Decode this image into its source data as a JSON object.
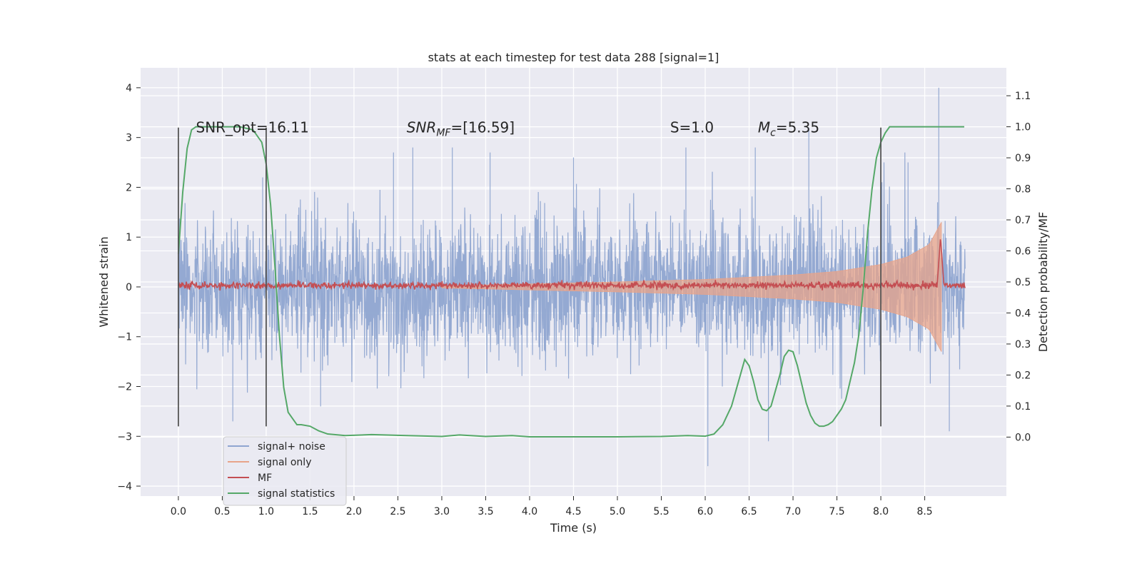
{
  "chart_data": {
    "type": "line",
    "title": "stats at each timestep for test data 288 [signal=1]",
    "xlabel": "Time (s)",
    "ylabel": "Whitened strain",
    "ylabel_right": "Detection probability/MF",
    "xlim": [
      -0.43,
      9.43
    ],
    "ylim": [
      -4.2,
      4.4
    ],
    "ylim_right": [
      -0.19,
      1.19
    ],
    "x_ticks": [
      0.0,
      0.5,
      1.0,
      1.5,
      2.0,
      2.5,
      3.0,
      3.5,
      4.0,
      4.5,
      5.0,
      5.5,
      6.0,
      6.5,
      7.0,
      7.5,
      8.0,
      8.5
    ],
    "x_tick_labels": [
      "0.0",
      "0.5",
      "1.0",
      "1.5",
      "2.0",
      "2.5",
      "3.0",
      "3.5",
      "4.0",
      "4.5",
      "5.0",
      "5.5",
      "6.0",
      "6.5",
      "7.0",
      "7.5",
      "8.0",
      "8.5"
    ],
    "y_ticks": [
      4,
      3,
      2,
      1,
      0,
      -1,
      -2,
      -3,
      -4
    ],
    "y_tick_labels": [
      "4",
      "3",
      "2",
      "1",
      "0",
      "−1",
      "−2",
      "−3",
      "−4"
    ],
    "y_ticks_right": [
      1.1,
      1.0,
      0.9,
      0.8,
      0.7,
      0.6,
      0.5,
      0.4,
      0.3,
      0.2,
      0.1,
      0.0
    ],
    "y_tick_labels_right": [
      "1.1",
      "1.0",
      "0.9",
      "0.8",
      "0.7",
      "0.6",
      "0.5",
      "0.4",
      "0.3",
      "0.2",
      "0.1",
      "0.0"
    ],
    "grid": true,
    "legend_position": "bottom-left",
    "annotations": [
      {
        "text": "SNR_opt=16.11",
        "x": 0.2,
        "y": 3.2
      },
      {
        "text": "SNR_MF=[16.59]",
        "x": 2.6,
        "y": 3.2
      },
      {
        "text": "S=1.0",
        "x": 5.6,
        "y": 3.2
      },
      {
        "text": "M_c=5.35",
        "x": 6.6,
        "y": 3.2
      }
    ],
    "vertical_markers": [
      {
        "x": 0.0,
        "y_range": [
          -2.8,
          3.2
        ]
      },
      {
        "x": 1.0,
        "y_range": [
          -2.8,
          3.2
        ]
      },
      {
        "x": 8.0,
        "y_range": [
          -2.8,
          3.2
        ]
      }
    ],
    "series": [
      {
        "name": "signal+ noise",
        "color": "#8fa5d0",
        "axis": "left",
        "style": "dense-noise",
        "x_range": [
          0.0,
          8.96
        ],
        "typical_envelope": [
          -1.8,
          1.8
        ],
        "peaks": [
          {
            "x": 0.62,
            "y": -2.7
          },
          {
            "x": 0.96,
            "y": 2.2
          },
          {
            "x": 1.62,
            "y": -2.4
          },
          {
            "x": 2.45,
            "y": 2.7
          },
          {
            "x": 2.67,
            "y": 2.8
          },
          {
            "x": 3.12,
            "y": 2.8
          },
          {
            "x": 3.55,
            "y": 2.7
          },
          {
            "x": 4.5,
            "y": 2.6
          },
          {
            "x": 5.78,
            "y": 2.8
          },
          {
            "x": 6.03,
            "y": -3.6
          },
          {
            "x": 6.57,
            "y": 2.8
          },
          {
            "x": 6.72,
            "y": -3.1
          },
          {
            "x": 7.18,
            "y": 3.2
          },
          {
            "x": 8.31,
            "y": 2.5
          },
          {
            "x": 8.66,
            "y": 4.0
          },
          {
            "x": 8.78,
            "y": -2.9
          }
        ]
      },
      {
        "name": "signal only",
        "color": "#e8a48a",
        "axis": "left",
        "style": "chirp-envelope",
        "x_range": [
          3.0,
          8.69
        ],
        "amplitude": [
          {
            "x": 3.0,
            "y": 0.02
          },
          {
            "x": 4.0,
            "y": 0.06
          },
          {
            "x": 5.0,
            "y": 0.1
          },
          {
            "x": 6.0,
            "y": 0.15
          },
          {
            "x": 7.0,
            "y": 0.24
          },
          {
            "x": 7.5,
            "y": 0.31
          },
          {
            "x": 8.0,
            "y": 0.45
          },
          {
            "x": 8.3,
            "y": 0.6
          },
          {
            "x": 8.55,
            "y": 0.85
          },
          {
            "x": 8.69,
            "y": 1.3
          }
        ]
      },
      {
        "name": "MF",
        "color": "#c44e52",
        "axis": "left",
        "style": "narrow-noise",
        "x_range": [
          0.0,
          8.96
        ],
        "typical_envelope": [
          -0.1,
          0.15
        ],
        "peaks": [
          {
            "x": 8.68,
            "y": 1.0
          }
        ]
      },
      {
        "name": "signal statistics",
        "color": "#55a868",
        "axis": "right",
        "x": [
          0.0,
          0.05,
          0.1,
          0.15,
          0.2,
          0.3,
          0.5,
          0.7,
          0.85,
          0.95,
          1.0,
          1.05,
          1.1,
          1.15,
          1.2,
          1.25,
          1.3,
          1.35,
          1.4,
          1.5,
          1.6,
          1.7,
          1.9,
          2.2,
          2.6,
          3.0,
          3.2,
          3.5,
          3.8,
          4.0,
          4.5,
          5.0,
          5.5,
          5.8,
          6.0,
          6.1,
          6.2,
          6.3,
          6.35,
          6.4,
          6.45,
          6.5,
          6.55,
          6.6,
          6.65,
          6.7,
          6.75,
          6.8,
          6.85,
          6.9,
          6.95,
          7.0,
          7.05,
          7.1,
          7.15,
          7.2,
          7.25,
          7.3,
          7.35,
          7.4,
          7.45,
          7.5,
          7.55,
          7.6,
          7.65,
          7.7,
          7.75,
          7.8,
          7.85,
          7.9,
          7.95,
          8.0,
          8.05,
          8.1,
          8.2,
          8.3,
          8.5,
          8.7,
          8.95
        ],
        "values": [
          0.59,
          0.79,
          0.93,
          0.99,
          1.0,
          1.0,
          1.0,
          1.0,
          0.99,
          0.95,
          0.88,
          0.75,
          0.55,
          0.33,
          0.16,
          0.08,
          0.06,
          0.04,
          0.04,
          0.035,
          0.02,
          0.01,
          0.005,
          0.008,
          0.005,
          0.002,
          0.007,
          0.002,
          0.005,
          0.001,
          0.001,
          0.001,
          0.002,
          0.005,
          0.003,
          0.01,
          0.04,
          0.1,
          0.15,
          0.2,
          0.25,
          0.23,
          0.18,
          0.12,
          0.09,
          0.085,
          0.1,
          0.15,
          0.2,
          0.26,
          0.28,
          0.275,
          0.23,
          0.17,
          0.11,
          0.07,
          0.045,
          0.035,
          0.035,
          0.04,
          0.05,
          0.07,
          0.09,
          0.12,
          0.18,
          0.24,
          0.33,
          0.48,
          0.66,
          0.8,
          0.9,
          0.95,
          0.98,
          1.0,
          1.0,
          1.0,
          1.0,
          1.0,
          1.0
        ]
      }
    ]
  }
}
